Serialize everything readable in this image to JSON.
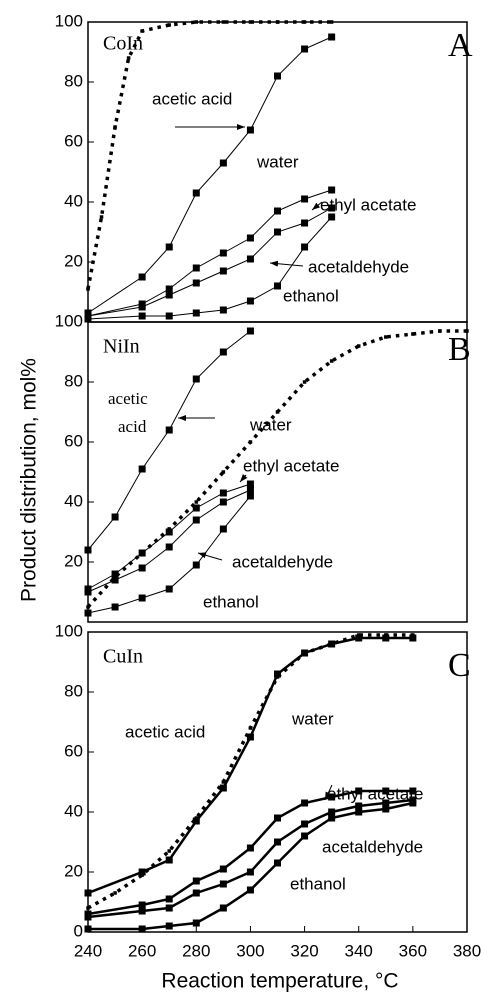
{
  "chart_data": [
    {
      "type": "line",
      "color": "#000",
      "linewidth": 1,
      "xlim": [
        240,
        380
      ],
      "ylim": [
        0,
        100
      ],
      "yticks": [
        20,
        40,
        60,
        80,
        100
      ],
      "annotations": [
        "CoIn",
        "A",
        "acetic acid",
        "water",
        "ethyl acetate",
        "acetaldehyde",
        "ethanol"
      ],
      "series": [
        {
          "style": "dotted",
          "x": [
            240,
            245,
            250,
            255,
            260,
            270,
            280,
            290,
            300,
            310,
            320,
            330
          ],
          "values": [
            11,
            35,
            65,
            88,
            97,
            99,
            100,
            100,
            100,
            100,
            100,
            100
          ]
        },
        {
          "style": "solid",
          "x": [
            240,
            260,
            270,
            280,
            290,
            300,
            310,
            320,
            330
          ],
          "values": [
            3,
            15,
            25,
            43,
            53,
            64,
            82,
            91,
            95
          ]
        },
        {
          "style": "solid",
          "x": [
            240,
            260,
            270,
            280,
            290,
            300,
            310,
            320,
            330
          ],
          "values": [
            2,
            6,
            11,
            18,
            23,
            28,
            37,
            41,
            44
          ]
        },
        {
          "style": "solid",
          "x": [
            240,
            260,
            270,
            280,
            290,
            300,
            310,
            320,
            330
          ],
          "values": [
            2,
            5,
            9,
            13,
            17,
            21,
            30,
            33,
            38
          ]
        },
        {
          "style": "solid",
          "x": [
            240,
            260,
            270,
            280,
            290,
            300,
            310,
            320,
            330
          ],
          "values": [
            1,
            2,
            2,
            3,
            4,
            7,
            12,
            25,
            35
          ]
        }
      ]
    },
    {
      "type": "line",
      "color": "#000",
      "linewidth": 1,
      "xlim": [
        240,
        380
      ],
      "ylim": [
        0,
        100
      ],
      "yticks": [
        20,
        40,
        60,
        80,
        100
      ],
      "ylabel": "Product distribution, mol%",
      "annotations": [
        "NiIn",
        "B",
        "acetic",
        "acid",
        "water",
        "ethyl acetate",
        "acetaldehyde",
        "ethanol"
      ],
      "series": [
        {
          "style": "dotted",
          "x": [
            240,
            250,
            260,
            270,
            280,
            290,
            300,
            310,
            320,
            330,
            340,
            350,
            360,
            370,
            380
          ],
          "values": [
            5,
            15,
            23,
            31,
            40,
            50,
            60,
            70,
            80,
            87,
            92,
            95,
            96,
            97,
            97
          ]
        },
        {
          "style": "solid",
          "x": [
            240,
            250,
            260,
            270,
            280,
            290,
            300
          ],
          "values": [
            24,
            35,
            51,
            64,
            81,
            90,
            97
          ]
        },
        {
          "style": "solid",
          "x": [
            240,
            250,
            260,
            270,
            280,
            290,
            300
          ],
          "values": [
            11,
            16,
            23,
            30,
            38,
            43,
            46
          ]
        },
        {
          "style": "solid",
          "x": [
            240,
            250,
            260,
            270,
            280,
            290,
            300
          ],
          "values": [
            10,
            14,
            18,
            25,
            34,
            40,
            44
          ]
        },
        {
          "style": "solid",
          "x": [
            240,
            250,
            260,
            270,
            280,
            290,
            300
          ],
          "values": [
            3,
            5,
            8,
            11,
            19,
            31,
            42
          ]
        }
      ]
    },
    {
      "type": "line",
      "color": "#000",
      "linewidth": 2.5,
      "xlim": [
        240,
        380
      ],
      "ylim": [
        0,
        100
      ],
      "yticks": [
        0,
        20,
        40,
        60,
        80,
        100
      ],
      "xticks": [
        240,
        260,
        280,
        300,
        320,
        340,
        360,
        380
      ],
      "xlabel": "Reaction temperature, °C",
      "annotations": [
        "CuIn",
        "C",
        "acetic acid",
        "water",
        "ethyl acetate",
        "acetaldehyde",
        "ethanol"
      ],
      "series": [
        {
          "style": "dotted",
          "x": [
            240,
            250,
            260,
            270,
            280,
            290,
            300,
            310,
            320,
            330,
            340,
            350,
            360
          ],
          "values": [
            8,
            13,
            19,
            27,
            38,
            50,
            68,
            85,
            93,
            96,
            99,
            99,
            99
          ]
        },
        {
          "style": "solid",
          "x": [
            240,
            260,
            270,
            280,
            290,
            300,
            310,
            320,
            330,
            340,
            350,
            360
          ],
          "values": [
            13,
            20,
            24,
            37,
            48,
            65,
            86,
            93,
            96,
            98,
            98,
            98
          ]
        },
        {
          "style": "solid",
          "x": [
            240,
            260,
            270,
            280,
            290,
            300,
            310,
            320,
            330,
            340,
            350,
            360
          ],
          "values": [
            6,
            9,
            11,
            17,
            21,
            28,
            38,
            43,
            45,
            47,
            47,
            47
          ]
        },
        {
          "style": "solid",
          "x": [
            240,
            260,
            270,
            280,
            290,
            300,
            310,
            320,
            330,
            340,
            350,
            360
          ],
          "values": [
            5,
            7,
            8,
            13,
            16,
            20,
            30,
            36,
            40,
            42,
            43,
            44
          ]
        },
        {
          "style": "solid",
          "x": [
            240,
            260,
            270,
            280,
            290,
            300,
            310,
            320,
            330,
            340,
            350,
            360
          ],
          "values": [
            1,
            1,
            2,
            3,
            8,
            14,
            23,
            32,
            38,
            40,
            41,
            43
          ]
        }
      ]
    }
  ]
}
